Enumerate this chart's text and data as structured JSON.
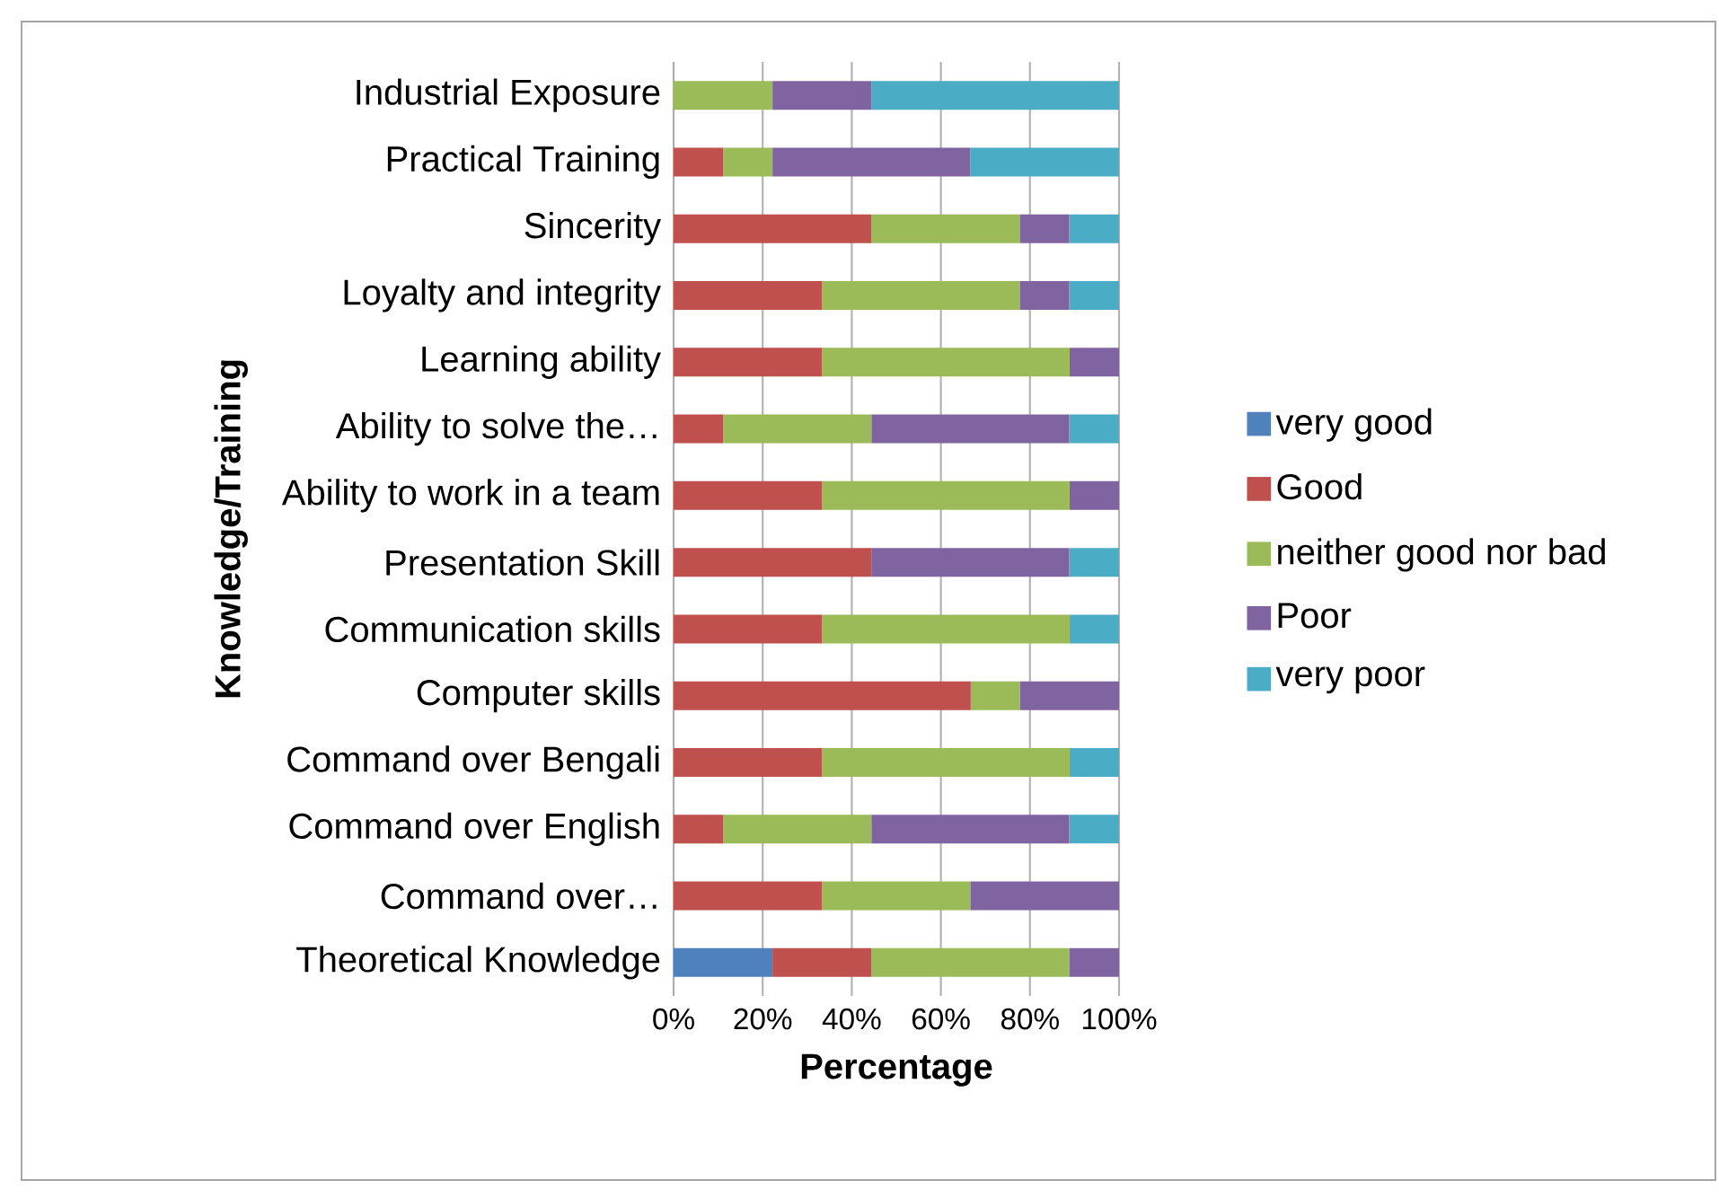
{
  "chart_data": {
    "type": "bar",
    "orientation": "horizontal",
    "stacked": true,
    "xlabel": "Percentage",
    "ylabel": "Knowledge/Training",
    "categories": [
      "Industrial Exposure",
      "Practical Training",
      "Sincerity",
      "Loyalty and integrity",
      "Learning ability",
      "Ability to solve the…",
      "Ability to work in a team",
      "Presentation Skill",
      "Communication skills",
      "Computer skills",
      "Command over Bengali",
      "Command over English",
      "Command over…",
      "Theoretical Knowledge"
    ],
    "series": [
      {
        "name": "very good",
        "color": "#4f81bd",
        "values": [
          0,
          0,
          0,
          0,
          0,
          0,
          0,
          0,
          0,
          0,
          0,
          0,
          0,
          22.2
        ]
      },
      {
        "name": "Good",
        "color": "#c0504d",
        "values": [
          0,
          11.1,
          44.4,
          33.3,
          33.3,
          11.1,
          33.3,
          44.4,
          33.3,
          66.7,
          33.3,
          11.1,
          33.3,
          22.2
        ]
      },
      {
        "name": "neither good nor bad",
        "color": "#9bbb59",
        "values": [
          22.2,
          11.1,
          33.3,
          44.4,
          55.6,
          33.3,
          55.6,
          0,
          55.6,
          11.1,
          55.6,
          33.3,
          33.3,
          44.4
        ]
      },
      {
        "name": "Poor",
        "color": "#8064a2",
        "values": [
          22.2,
          44.4,
          11.1,
          11.1,
          11.1,
          44.4,
          11.1,
          44.4,
          0,
          22.2,
          0,
          44.4,
          33.4,
          11.2
        ]
      },
      {
        "name": "very poor",
        "color": "#4bacc6",
        "values": [
          55.6,
          33.4,
          11.2,
          11.2,
          0,
          11.2,
          0,
          11.2,
          11.1,
          0,
          11.1,
          11.2,
          0,
          0
        ]
      }
    ],
    "xlim": [
      0,
      100
    ],
    "xticks": [
      {
        "value": 0,
        "label": "0%"
      },
      {
        "value": 20,
        "label": "20%"
      },
      {
        "value": 40,
        "label": "40%"
      },
      {
        "value": 60,
        "label": "60%"
      },
      {
        "value": 80,
        "label": "80%"
      },
      {
        "value": 100,
        "label": "100%"
      }
    ],
    "grid": "x",
    "legend": "right"
  }
}
